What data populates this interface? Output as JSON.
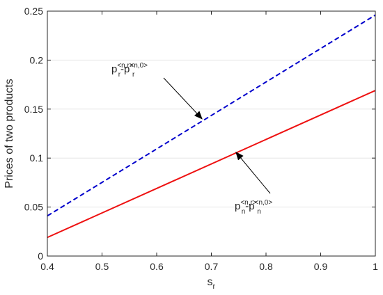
{
  "chart_data": {
    "type": "line",
    "xlabel": {
      "base": "s",
      "sub": "r"
    },
    "ylabel": "Prices of two products",
    "xlim": [
      0.4,
      1.0
    ],
    "ylim": [
      0.0,
      0.25
    ],
    "x_ticks": [
      "0.4",
      "0.5",
      "0.6",
      "0.7",
      "0.8",
      "0.9",
      "1"
    ],
    "y_ticks": [
      "0",
      "0.05",
      "0.1",
      "0.15",
      "0.2",
      "0.25"
    ],
    "x_tick_values": [
      0.4,
      0.5,
      0.6,
      0.7,
      0.8,
      0.9,
      1.0
    ],
    "y_tick_values": [
      0,
      0.05,
      0.1,
      0.15,
      0.2,
      0.25
    ],
    "grid": "horizontal",
    "series": [
      {
        "color": "#0000cc",
        "style": "dashed",
        "x": [
          0.4,
          1.0
        ],
        "y": [
          0.041,
          0.246
        ]
      },
      {
        "color": "#ee1111",
        "style": "solid",
        "x": [
          0.4,
          1.0
        ],
        "y": [
          0.019,
          0.169
        ]
      }
    ],
    "annotations": [
      {
        "parts": [
          {
            "t": "p",
            "kind": "main"
          },
          {
            "t": "<n,r>",
            "kind": "sup"
          },
          {
            "t": "r",
            "kind": "sub"
          },
          {
            "t": "-p",
            "kind": "main"
          },
          {
            "t": "<n,0>",
            "kind": "sup"
          },
          {
            "t": "r",
            "kind": "sub"
          }
        ],
        "arrow_target": {
          "x": 0.683,
          "y": 0.14
        }
      },
      {
        "parts": [
          {
            "t": "p",
            "kind": "main"
          },
          {
            "t": "<n,r>",
            "kind": "sup"
          },
          {
            "t": "n",
            "kind": "sub"
          },
          {
            "t": "-p",
            "kind": "main"
          },
          {
            "t": "<n,0>",
            "kind": "sup"
          },
          {
            "t": "n",
            "kind": "sub"
          }
        ],
        "arrow_target": {
          "x": 0.745,
          "y": 0.106
        }
      }
    ]
  }
}
